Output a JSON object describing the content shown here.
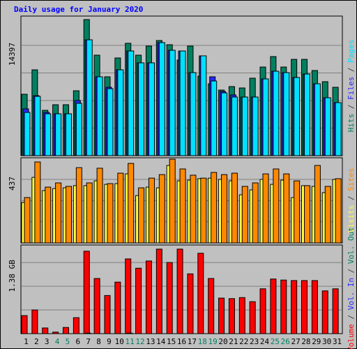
{
  "chart_data": [
    {
      "type": "bar",
      "title": "Daily usage for January 2020",
      "title_color": "#0000ff",
      "legend_separator": "/",
      "legend_separator_color": "#404040",
      "ylim": [
        0,
        18224
      ],
      "yticks": [
        14397
      ],
      "grid": true,
      "grid_divisions": 4,
      "series": [
        {
          "name": "Hits",
          "color": "#008060",
          "values": [
            8017,
            11206,
            5922,
            6650,
            6650,
            8473,
            17765,
            13119,
            10295,
            12754,
            14668,
            13119,
            14303,
            15032,
            14485,
            12481,
            14303,
            10386,
            9383,
            8563,
            9019,
            8837,
            10113,
            11570,
            12936,
            11570,
            12572,
            12572,
            11114,
            9657,
            8928
          ]
        },
        {
          "name": "Files",
          "color": "#2828ff",
          "values": [
            6104,
            7835,
            5648,
            5466,
            5466,
            7197,
            15123,
            10295,
            8928,
            11206,
            13666,
            12117,
            12117,
            14759,
            13757,
            13666,
            10841,
            13028,
            10295,
            8381,
            7926,
            7653,
            7653,
            10021,
            11023,
            10841,
            10203,
            10659,
            9383,
            7561,
            6924
          ]
        },
        {
          "name": "Pages",
          "color": "#00e0ff",
          "values": [
            5648,
            7744,
            5466,
            5466,
            5466,
            6833,
            15123,
            10295,
            8746,
            11206,
            13666,
            12117,
            12117,
            14759,
            13757,
            13666,
            10841,
            13028,
            9748,
            8199,
            7653,
            7653,
            7653,
            10021,
            11023,
            10841,
            10203,
            10659,
            9383,
            7561,
            6924
          ]
        }
      ]
    },
    {
      "type": "bar",
      "ylim": [
        0,
        586
      ],
      "yticks": [
        437
      ],
      "grid": true,
      "grid_divisions": 3,
      "series": [
        {
          "name": "Visits",
          "color": "#ffff40",
          "values": [
            278,
            451,
            360,
            374,
            379,
            394,
            394,
            427,
            403,
            408,
            475,
            326,
            384,
            379,
            533,
            427,
            432,
            442,
            446,
            437,
            427,
            331,
            365,
            437,
            403,
            432,
            312,
            394,
            389,
            346,
            437
          ]
        },
        {
          "name": "Sites",
          "color": "#ff8800",
          "values": [
            312,
            557,
            384,
            413,
            389,
            518,
            413,
            514,
            408,
            480,
            547,
            379,
            446,
            470,
            576,
            509,
            466,
            446,
            485,
            470,
            480,
            389,
            413,
            475,
            509,
            475,
            427,
            394,
            533,
            389,
            442
          ]
        }
      ]
    },
    {
      "type": "bar",
      "ylim": [
        0,
        1.72
      ],
      "yticks": [
        {
          "value": 1.38,
          "label": "1.38 GB"
        }
      ],
      "grid": true,
      "grid_divisions": 3,
      "categories": [
        "1",
        "2",
        "3",
        "4",
        "5",
        "6",
        "7",
        "8",
        "9",
        "10",
        "11",
        "12",
        "13",
        "14",
        "15",
        "16",
        "17",
        "18",
        "19",
        "20",
        "21",
        "22",
        "23",
        "24",
        "25",
        "26",
        "27",
        "28",
        "29",
        "30",
        "31"
      ],
      "label_color": "#000000",
      "weekend_label_color": "#008060",
      "weekend_categories": [
        "4",
        "5",
        "11",
        "12",
        "18",
        "19",
        "25",
        "26"
      ],
      "series": [
        {
          "name": "Volume",
          "color": "#ff0000",
          "values": [
            0.35,
            0.46,
            0.11,
            0.03,
            0.12,
            0.31,
            1.6,
            1.07,
            0.74,
            1.0,
            1.45,
            1.27,
            1.41,
            1.64,
            1.38,
            1.64,
            1.16,
            1.56,
            1.07,
            0.69,
            0.68,
            0.7,
            0.62,
            0.87,
            1.06,
            1.04,
            1.03,
            1.03,
            1.03,
            0.83,
            0.87
          ]
        },
        {
          "name": "Vol. In",
          "color": "#2828ff",
          "values": [
            0,
            0,
            0,
            0,
            0,
            0,
            0.01,
            0,
            0,
            0,
            0.01,
            0,
            0,
            0,
            0,
            0,
            0,
            0,
            0,
            0,
            0,
            0,
            0,
            0,
            0,
            0,
            0,
            0,
            0,
            0,
            0
          ]
        },
        {
          "name": "Vol. Out",
          "color": "#008060",
          "values": [
            0,
            0,
            0,
            0,
            0,
            0,
            0,
            0,
            0,
            0,
            0,
            0,
            0,
            0,
            0,
            0,
            0,
            0,
            0,
            0,
            0,
            0,
            0,
            0,
            0,
            0,
            0,
            0,
            0,
            0,
            0
          ]
        }
      ]
    }
  ]
}
